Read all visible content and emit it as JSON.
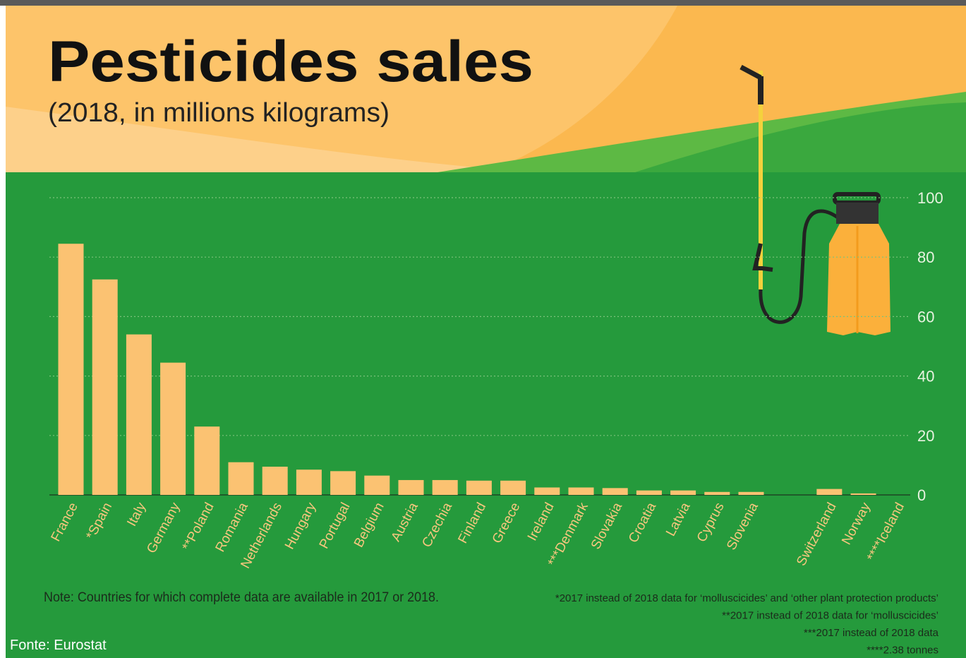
{
  "chart_data": {
    "type": "bar",
    "title": "Pesticides sales",
    "subtitle": "(2018, in millions kilograms)",
    "categories": [
      "France",
      "*Spain",
      "Italy",
      "Germany",
      "**Poland",
      "Romania",
      "Netherlands",
      "Hungary",
      "Portugal",
      "Belgium",
      "Austria",
      "Czechia",
      "Finland",
      "Greece",
      "Ireland",
      "***Denmark",
      "Slovakia",
      "Croatia",
      "Latvia",
      "Cyprus",
      "Slovenia",
      "Switzerland",
      "Norway",
      "****Iceland"
    ],
    "values": [
      84.5,
      72.5,
      54,
      44.5,
      23,
      11,
      9.5,
      8.5,
      8,
      6.5,
      5,
      5,
      4.8,
      4.8,
      2.5,
      2.5,
      2.3,
      1.5,
      1.5,
      1,
      1,
      2,
      0.5,
      0.00238
    ],
    "color": "#fbc272",
    "ylim": [
      0,
      100
    ],
    "yticks": [
      0,
      20,
      40,
      60,
      80,
      100
    ],
    "grid": true,
    "note": "Note: Countries for which complete data are available in 2017 or 2018.",
    "footnotes": [
      "*2017 instead of 2018 data for ‘molluscicides’ and ‘other plant protection products’",
      "**2017 instead of 2018 data for ‘molluscicides’",
      "***2017 instead of 2018 data",
      "****2.38 tonnes"
    ],
    "source": "Fonte: Eurostat"
  }
}
